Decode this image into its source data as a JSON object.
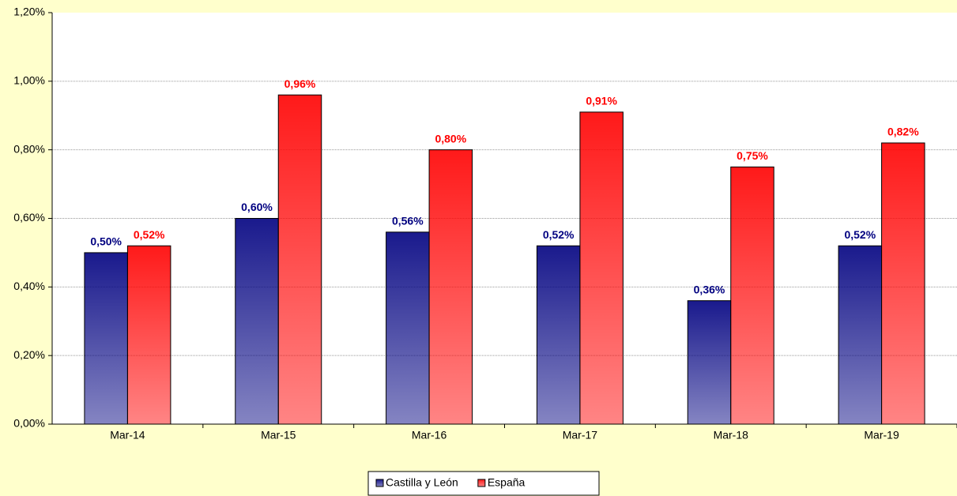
{
  "chart_data": {
    "type": "bar",
    "categories": [
      "Mar-14",
      "Mar-15",
      "Mar-16",
      "Mar-17",
      "Mar-18",
      "Mar-19"
    ],
    "series": [
      {
        "name": "Castilla y León",
        "color": "#000080",
        "values": [
          0.5,
          0.6,
          0.56,
          0.52,
          0.36,
          0.52
        ],
        "value_labels": [
          "0,50%",
          "0,60%",
          "0,56%",
          "0,52%",
          "0,36%",
          "0,52%"
        ]
      },
      {
        "name": "España",
        "color": "#ff0000",
        "values": [
          0.52,
          0.96,
          0.8,
          0.91,
          0.75,
          0.82
        ],
        "value_labels": [
          "0,52%",
          "0,96%",
          "0,80%",
          "0,91%",
          "0,75%",
          "0,82%"
        ]
      }
    ],
    "ylim": [
      0,
      1.2
    ],
    "yticks": [
      {
        "value": 0,
        "label": "0,00%"
      },
      {
        "value": 0.2,
        "label": "0,20%"
      },
      {
        "value": 0.4,
        "label": "0,40%"
      },
      {
        "value": 0.6,
        "label": "0,60%"
      },
      {
        "value": 0.8,
        "label": "0,80%"
      },
      {
        "value": 1.0,
        "label": "1,00%"
      },
      {
        "value": 1.2,
        "label": "1,20%"
      }
    ],
    "grid": true,
    "legend": "bottom"
  }
}
